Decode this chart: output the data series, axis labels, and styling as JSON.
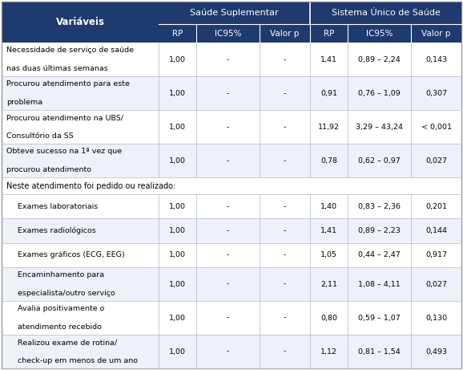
{
  "header_bg": "#1e3a6e",
  "header_text": "#ffffff",
  "row_bg_alt": "#eef2f8",
  "row_bg_normal": "#ffffff",
  "border_color": "#b0b8c8",
  "col_header1": "Saúde Suplementar",
  "col_header2": "Sistema Único de Saúde",
  "col_var": "Variáveis",
  "sub_cols": [
    "RP",
    "IC95%",
    "Valor p",
    "RP",
    "IC95%",
    "Valor p"
  ],
  "section_label": "Neste atendimento foi pedido ou realizado:",
  "rows": [
    {
      "label": "Necessidade de serviço de saúde\nnas duas últimas semanas",
      "ss": [
        "1,00",
        "-",
        "-"
      ],
      "sus": [
        "1,41",
        "0,89 – 2,24",
        "0,143"
      ],
      "indent": false
    },
    {
      "label": "Procurou atendimento para este\nproblema",
      "ss": [
        "1,00",
        "-",
        "-"
      ],
      "sus": [
        "0,91",
        "0,76 – 1,09",
        "0,307"
      ],
      "indent": false
    },
    {
      "label": "Procurou atendimento na UBS/\nConsultório da SS",
      "ss": [
        "1,00",
        "-",
        "-"
      ],
      "sus": [
        "11,92",
        "3,29 – 43,24",
        "< 0,001"
      ],
      "indent": false
    },
    {
      "label": "Obteve sucesso na 1ª vez que\nprocurou atendimento",
      "ss": [
        "1,00",
        "-",
        "-"
      ],
      "sus": [
        "0,78",
        "0,62 – 0,97",
        "0,027"
      ],
      "indent": false
    },
    {
      "label": "Exames laboratoriais",
      "ss": [
        "1,00",
        "-",
        "-"
      ],
      "sus": [
        "1,40",
        "0,83 – 2,36",
        "0,201"
      ],
      "indent": true
    },
    {
      "label": "Exames radiológicos",
      "ss": [
        "1,00",
        "-",
        "-"
      ],
      "sus": [
        "1,41",
        "0,89 – 2,23",
        "0,144"
      ],
      "indent": true
    },
    {
      "label": "Exames gráficos (ECG, EEG)",
      "ss": [
        "1,00",
        "-",
        "-"
      ],
      "sus": [
        "1,05",
        "0,44 – 2,47",
        "0,917"
      ],
      "indent": true
    },
    {
      "label": "Encaminhamento para\nespecialista/outro serviço",
      "ss": [
        "1,00",
        "-",
        "-"
      ],
      "sus": [
        "2,11",
        "1,08 – 4,11",
        "0,027"
      ],
      "indent": true
    },
    {
      "label": "Avalia positivamente o\natendimento recebido",
      "ss": [
        "1,00",
        "-",
        "-"
      ],
      "sus": [
        "0,80",
        "0,59 – 1,07",
        "0,130"
      ],
      "indent": true
    },
    {
      "label": "Realizou exame de rotina/\ncheck-up em menos de um ano",
      "ss": [
        "1,00",
        "-",
        "-"
      ],
      "sus": [
        "1,12",
        "0,81 – 1,54",
        "0,493"
      ],
      "indent": true
    }
  ]
}
